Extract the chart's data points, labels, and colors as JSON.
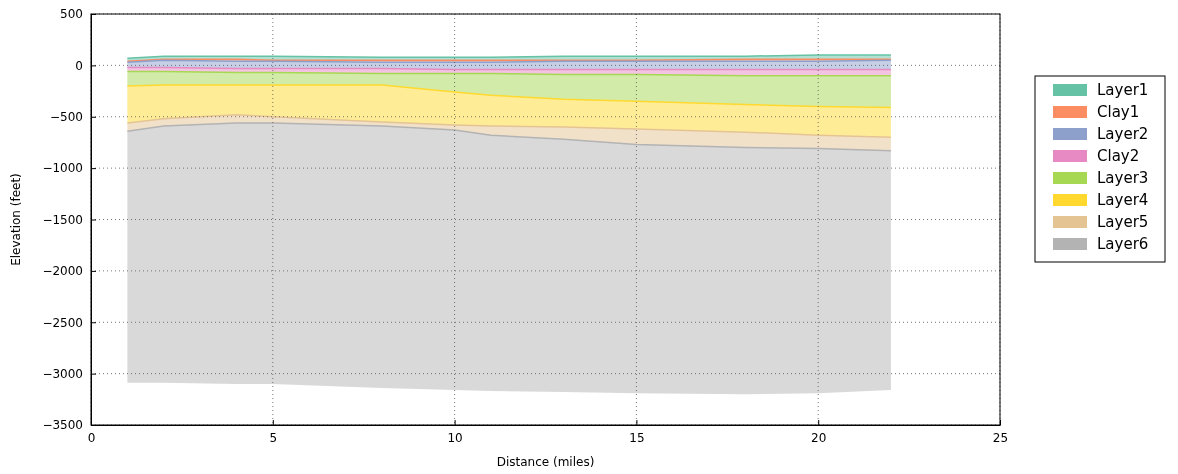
{
  "chart_data": {
    "type": "line",
    "xlabel": "Distance (miles)",
    "ylabel": "Elevation (feet)",
    "x": [
      1,
      2,
      4,
      5,
      8,
      10,
      11,
      13,
      15,
      18,
      20,
      22
    ],
    "xlim": [
      0,
      25
    ],
    "xticks": [
      0,
      5,
      10,
      15,
      20,
      25
    ],
    "ylim": [
      -3500,
      500
    ],
    "yticks": [
      -3500,
      -3000,
      -2500,
      -2000,
      -1500,
      -1000,
      -500,
      0,
      500
    ],
    "grid": true,
    "legend": "right",
    "series": [
      {
        "name": "Layer1",
        "color": "#66c2a5",
        "values": [
          70,
          90,
          90,
          90,
          80,
          80,
          80,
          90,
          90,
          90,
          100,
          100
        ],
        "upper": [
          70,
          90,
          90,
          90,
          80,
          80,
          80,
          90,
          90,
          90,
          100,
          100
        ],
        "lower": [
          40,
          60,
          60,
          50,
          50,
          50,
          50,
          50,
          50,
          60,
          60,
          60
        ]
      },
      {
        "name": "Clay1",
        "color": "#fc8d62",
        "values": [
          40,
          60,
          60,
          50,
          50,
          50,
          50,
          50,
          50,
          60,
          60,
          60
        ],
        "upper": [
          40,
          60,
          60,
          50,
          50,
          50,
          50,
          50,
          50,
          60,
          60,
          60
        ],
        "lower": [
          30,
          50,
          40,
          40,
          30,
          30,
          30,
          40,
          40,
          40,
          40,
          50
        ]
      },
      {
        "name": "Layer2",
        "color": "#8da0cb",
        "values": [
          30,
          50,
          40,
          40,
          30,
          30,
          30,
          40,
          40,
          40,
          40,
          50
        ],
        "upper": [
          30,
          50,
          40,
          40,
          30,
          30,
          30,
          40,
          40,
          40,
          40,
          50
        ],
        "lower": [
          -20,
          -20,
          -30,
          -30,
          -30,
          -40,
          -40,
          -40,
          -40,
          -40,
          -40,
          -40
        ]
      },
      {
        "name": "Clay2",
        "color": "#e78ac3",
        "values": [
          -20,
          -20,
          -30,
          -30,
          -30,
          -40,
          -40,
          -40,
          -40,
          -40,
          -40,
          -40
        ],
        "upper": [
          -20,
          -20,
          -30,
          -30,
          -30,
          -40,
          -40,
          -40,
          -40,
          -40,
          -40,
          -40
        ],
        "lower": [
          -60,
          -60,
          -70,
          -70,
          -80,
          -80,
          -80,
          -90,
          -90,
          -100,
          -100,
          -100
        ]
      },
      {
        "name": "Layer3",
        "color": "#a6d854",
        "values": [
          -60,
          -60,
          -70,
          -70,
          -80,
          -80,
          -80,
          -90,
          -90,
          -100,
          -100,
          -100
        ],
        "upper": [
          -60,
          -60,
          -70,
          -70,
          -80,
          -80,
          -80,
          -90,
          -90,
          -100,
          -100,
          -100
        ],
        "lower": [
          -200,
          -190,
          -190,
          -190,
          -190,
          -260,
          -290,
          -330,
          -350,
          -380,
          -400,
          -410
        ]
      },
      {
        "name": "Layer4",
        "color": "#ffd92f",
        "values": [
          -200,
          -190,
          -190,
          -190,
          -190,
          -260,
          -290,
          -330,
          -350,
          -380,
          -400,
          -410
        ],
        "upper": [
          -200,
          -190,
          -190,
          -190,
          -190,
          -260,
          -290,
          -330,
          -350,
          -380,
          -400,
          -410
        ],
        "lower": [
          -560,
          -520,
          -480,
          -500,
          -550,
          -580,
          -590,
          -600,
          -620,
          -650,
          -680,
          -700
        ]
      },
      {
        "name": "Layer5",
        "color": "#e5c494",
        "values": [
          -560,
          -520,
          -480,
          -500,
          -550,
          -580,
          -590,
          -600,
          -620,
          -650,
          -680,
          -700
        ],
        "upper": [
          -560,
          -520,
          -480,
          -500,
          -550,
          -580,
          -590,
          -600,
          -620,
          -650,
          -680,
          -700
        ],
        "lower": [
          -640,
          -590,
          -560,
          -560,
          -590,
          -630,
          -680,
          -720,
          -770,
          -800,
          -810,
          -830
        ]
      },
      {
        "name": "Layer6",
        "color": "#b3b3b3",
        "values": [
          -640,
          -590,
          -560,
          -560,
          -590,
          -630,
          -680,
          -720,
          -770,
          -800,
          -810,
          -830
        ],
        "upper": [
          -640,
          -590,
          -560,
          -560,
          -590,
          -630,
          -680,
          -720,
          -770,
          -800,
          -810,
          -830
        ],
        "lower": [
          -3090,
          -3090,
          -3100,
          -3100,
          -3140,
          -3160,
          -3170,
          -3180,
          -3190,
          -3200,
          -3190,
          -3160
        ]
      }
    ]
  }
}
